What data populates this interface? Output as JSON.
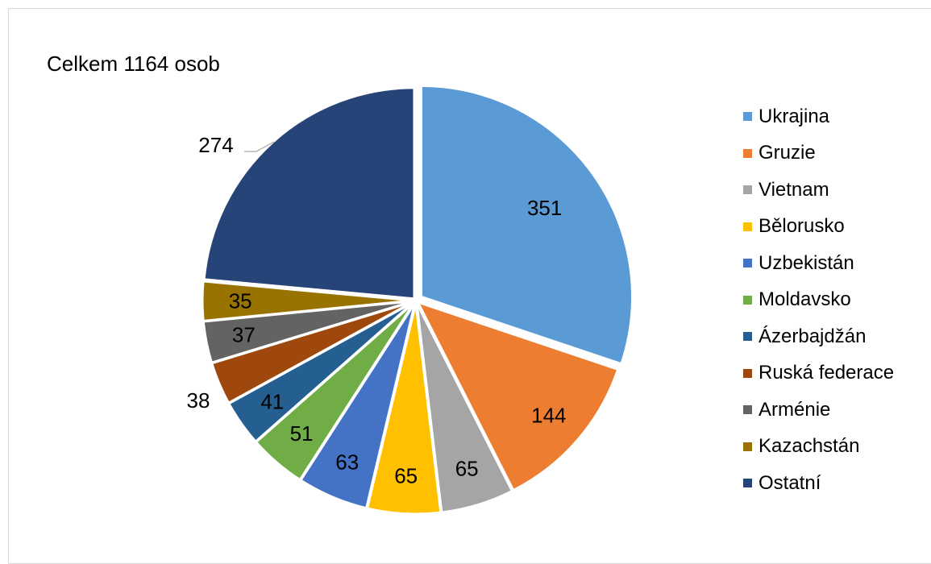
{
  "chart_data": {
    "type": "pie",
    "title": "Celkem 1164 osob",
    "categories": [
      "Ukrajina",
      "Gruzie",
      "Vietnam",
      "Bělorusko",
      "Uzbekistán",
      "Moldavsko",
      "Ázerbajdžán",
      "Ruská federace",
      "Arménie",
      "Kazachstán",
      "Ostatní"
    ],
    "values": [
      351,
      144,
      65,
      65,
      63,
      51,
      41,
      38,
      37,
      35,
      274
    ],
    "colors": [
      "#5b9bd5",
      "#ed7d31",
      "#a5a5a5",
      "#ffc000",
      "#4472c4",
      "#70ad47",
      "#255e91",
      "#9e480e",
      "#636363",
      "#997300",
      "#264478"
    ],
    "legend_position": "right",
    "data_labels": true
  }
}
